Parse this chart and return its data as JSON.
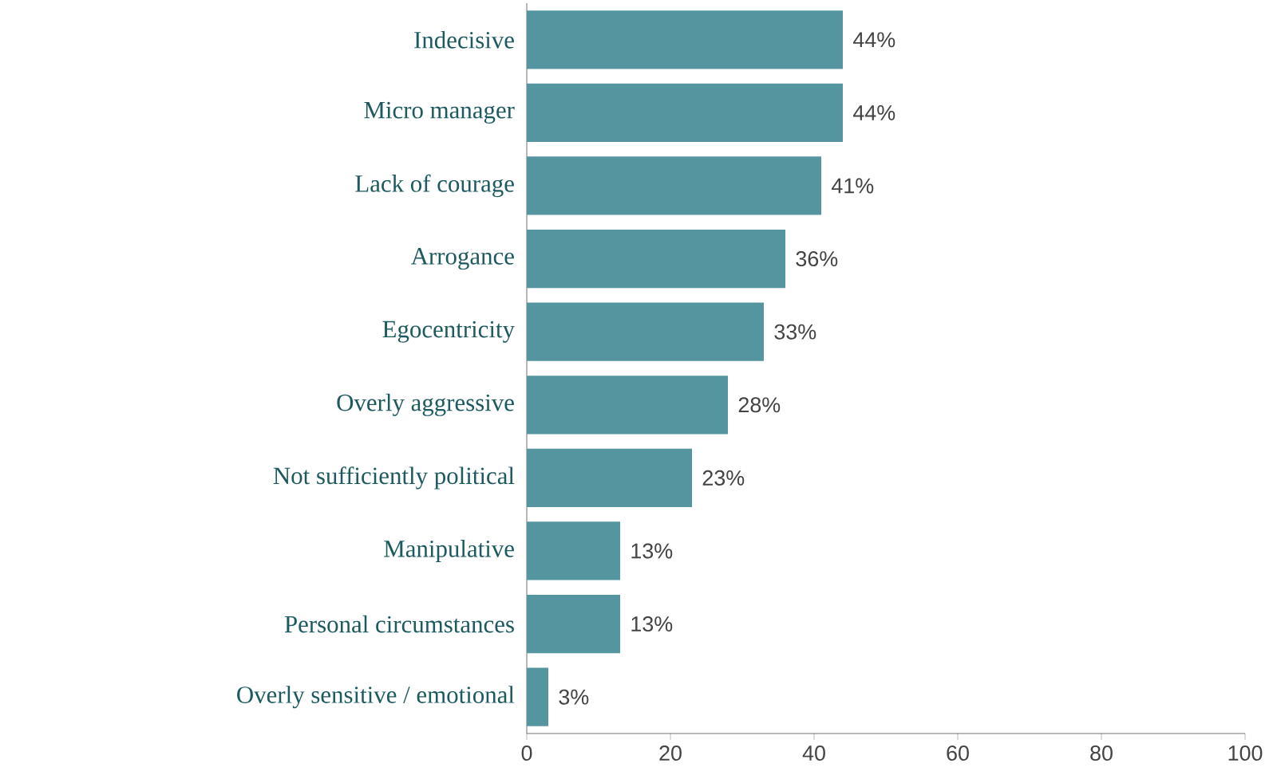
{
  "chart_data": {
    "type": "bar",
    "orientation": "horizontal",
    "categories": [
      "Indecisive",
      "Micro manager",
      "Lack of courage",
      "Arrogance",
      "Egocentricity",
      "Overly aggressive",
      "Not sufficiently political",
      "Manipulative",
      "Personal circumstances",
      "Overly sensitive / emotional"
    ],
    "values": [
      44,
      44,
      41,
      36,
      33,
      28,
      23,
      13,
      13,
      3
    ],
    "value_labels": [
      "44%",
      "44%",
      "41%",
      "36%",
      "33%",
      "28%",
      "23%",
      "13%",
      "13%",
      "3%"
    ],
    "color": "#5495a0",
    "xlim": [
      0,
      100
    ],
    "xticks": [
      0,
      20,
      40,
      60,
      80,
      100
    ]
  }
}
